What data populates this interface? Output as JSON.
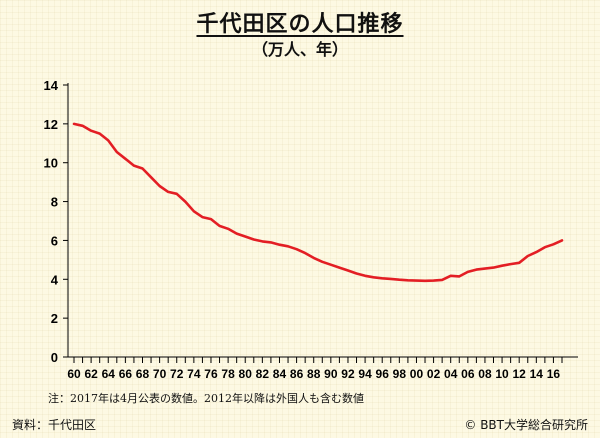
{
  "title": "千代田区の人口推移",
  "subtitle": "（万人、年）",
  "note": "注：2017年は4月公表の数値。2012年以降は外国人も含む数値",
  "source": "資料：千代田区",
  "copyright": "© BBT大学総合研究所",
  "colors": {
    "line": "#e31e24",
    "axis": "#000000"
  },
  "chart_data": {
    "type": "line",
    "title": "千代田区の人口推移",
    "subtitle": "（万人、年）",
    "xlabel": "",
    "ylabel": "",
    "ylim": [
      0,
      14
    ],
    "yticks": [
      0,
      2,
      4,
      6,
      8,
      10,
      12,
      14
    ],
    "xlim": [
      1960,
      2017
    ],
    "xtick_labels": [
      "60",
      "62",
      "64",
      "66",
      "68",
      "70",
      "72",
      "74",
      "76",
      "78",
      "80",
      "82",
      "84",
      "86",
      "88",
      "90",
      "92",
      "94",
      "96",
      "98",
      "00",
      "02",
      "04",
      "06",
      "08",
      "10",
      "12",
      "14",
      "16"
    ],
    "grid": false,
    "series": [
      {
        "x": [
          1960,
          1961,
          1962,
          1963,
          1964,
          1965,
          1966,
          1967,
          1968,
          1969,
          1970,
          1971,
          1972,
          1973,
          1974,
          1975,
          1976,
          1977,
          1978,
          1979,
          1980,
          1981,
          1982,
          1983,
          1984,
          1985,
          1986,
          1987,
          1988,
          1989,
          1990,
          1991,
          1992,
          1993,
          1994,
          1995,
          1996,
          1997,
          1998,
          1999,
          2000,
          2001,
          2002,
          2003,
          2004,
          2005,
          2006,
          2007,
          2008,
          2009,
          2010,
          2011,
          2012,
          2013,
          2014,
          2015,
          2016,
          2017
        ],
        "values": [
          12.0,
          11.9,
          11.65,
          11.5,
          11.15,
          10.55,
          10.2,
          9.85,
          9.7,
          9.25,
          8.8,
          8.5,
          8.4,
          8.0,
          7.5,
          7.2,
          7.1,
          6.75,
          6.6,
          6.35,
          6.2,
          6.05,
          5.95,
          5.9,
          5.78,
          5.7,
          5.55,
          5.35,
          5.1,
          4.9,
          4.75,
          4.6,
          4.45,
          4.3,
          4.18,
          4.1,
          4.05,
          4.02,
          3.98,
          3.95,
          3.93,
          3.92,
          3.93,
          3.97,
          4.18,
          4.15,
          4.38,
          4.5,
          4.55,
          4.6,
          4.7,
          4.78,
          4.85,
          5.2,
          5.4,
          5.65,
          5.8,
          6.0
        ]
      }
    ]
  }
}
